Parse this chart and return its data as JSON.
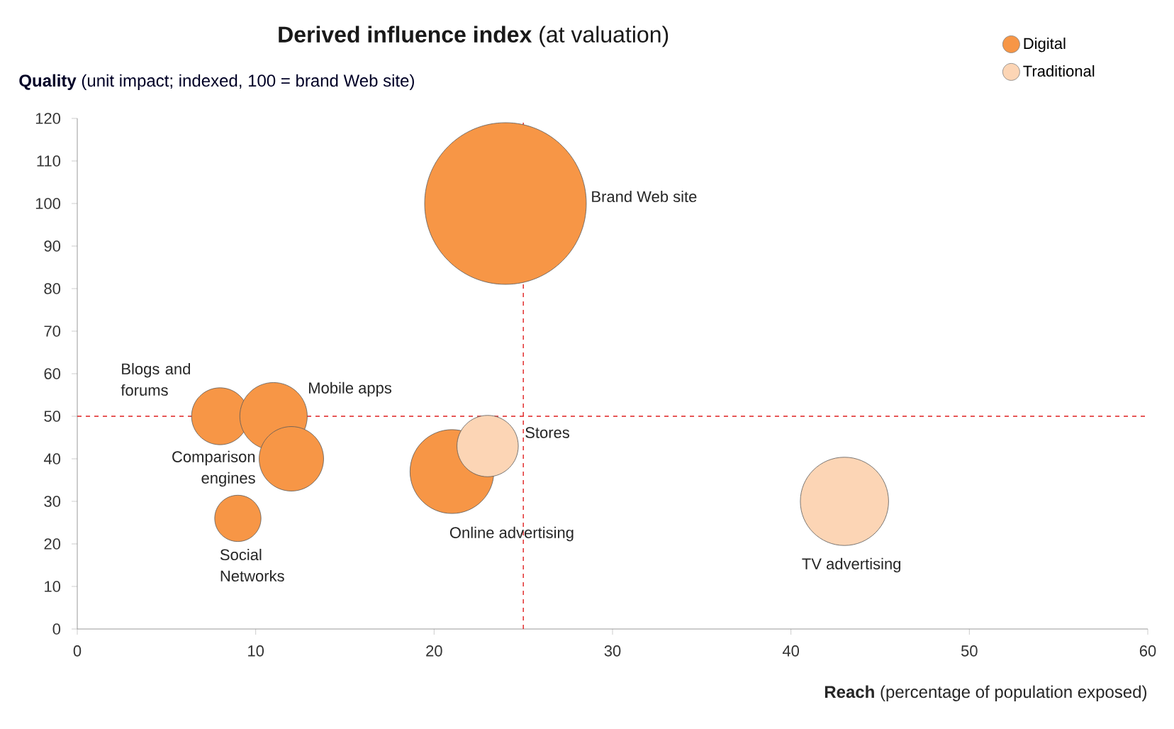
{
  "chart_data": {
    "type": "bubble",
    "title": "**Derived influence index**  (at valuation)",
    "xlabel": "**Reach** (percentage of population exposed)",
    "ylabel": "**Quality** (unit impact; indexed, 100 = brand Web site)",
    "series": [
      {
        "name": "Digital",
        "color": "#f79646",
        "x": [
          24,
          8,
          11,
          12,
          9,
          21
        ],
        "values": [
          100,
          50,
          50,
          40,
          26,
          37
        ],
        "sizes": [
          1,
          0.124,
          0.174,
          0.159,
          0.082,
          0.269
        ]
      },
      {
        "name": "Traditional",
        "color": "#fcd5b5",
        "x": [
          23,
          43
        ],
        "values": [
          43,
          30
        ],
        "sizes": [
          0.144,
          0.298
        ]
      }
    ],
    "annotations": [
      "Brand Web site",
      "Blogs and forums",
      "Mobile apps",
      "Comparison engines",
      "Social Networks",
      "Online advertising",
      "Stores",
      "TV advertising"
    ],
    "ref_lines": [
      {
        "axis": "x",
        "value": 25,
        "color": "#e02020",
        "line_style": "dashed"
      },
      {
        "axis": "y",
        "value": 50,
        "color": "#e02020",
        "line_style": "dashed"
      }
    ],
    "xlim": [
      0,
      60
    ],
    "xticks": [
      0,
      10,
      20,
      30,
      40,
      50,
      60
    ],
    "ylim": [
      0,
      120
    ],
    "yticks": [
      0,
      10,
      20,
      30,
      40,
      50,
      60,
      70,
      80,
      90,
      100,
      110,
      120
    ],
    "grid": false,
    "legend": "top right",
    "marker": "circle"
  }
}
